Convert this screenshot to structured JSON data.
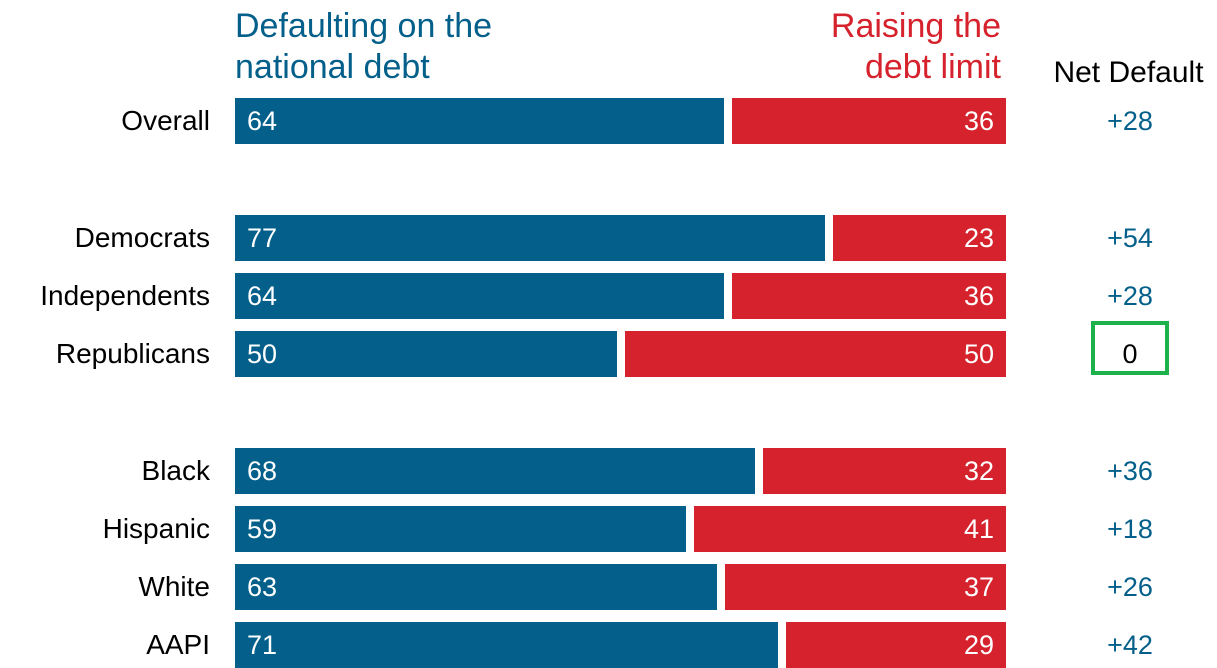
{
  "legend": {
    "left_label_line1": "Defaulting on the",
    "left_label_line2": "national debt",
    "right_label_line1": "Raising the",
    "right_label_line2": "debt limit",
    "net_header": "Net Default"
  },
  "colors": {
    "default": "#04608a",
    "raise": "#d5222c",
    "highlight": "#1db14b"
  },
  "chart_data": {
    "type": "bar",
    "stacked": true,
    "orientation": "horizontal",
    "categories": [
      "Overall",
      "Democrats",
      "Independents",
      "Republicans",
      "Black",
      "Hispanic",
      "White",
      "AAPI"
    ],
    "series": [
      {
        "name": "Defaulting on the national debt",
        "values": [
          64,
          77,
          64,
          50,
          68,
          59,
          63,
          71
        ]
      },
      {
        "name": "Raising the debt limit",
        "values": [
          36,
          23,
          36,
          50,
          32,
          41,
          37,
          29
        ]
      }
    ],
    "net_default": [
      "+28",
      "+54",
      "+28",
      "0",
      "+36",
      "+18",
      "+26",
      "+42"
    ],
    "highlighted_category": "Republicans",
    "xlim": [
      0,
      100
    ],
    "title": "",
    "xlabel": "",
    "ylabel": ""
  }
}
